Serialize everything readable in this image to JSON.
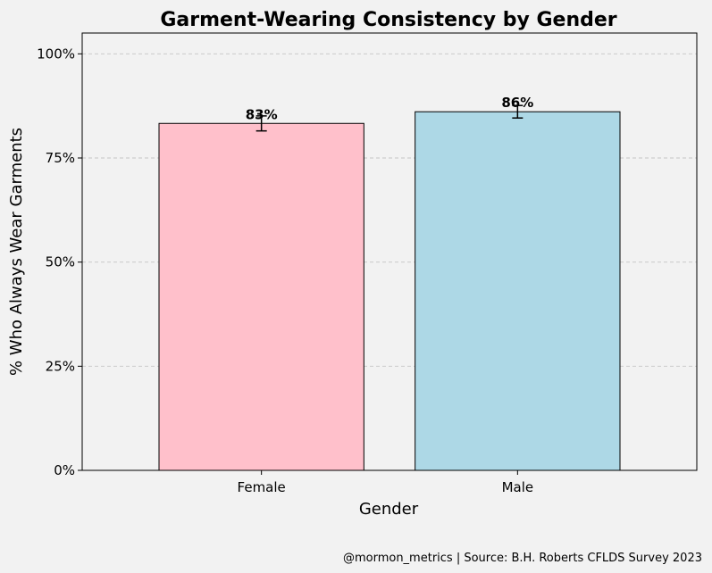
{
  "chart_data": {
    "type": "bar",
    "title": "Garment-Wearing Consistency by Gender",
    "xlabel": "Gender",
    "ylabel": "% Who Always Wear Garments",
    "categories": [
      "Female",
      "Male"
    ],
    "values": [
      83.3,
      86.1
    ],
    "error": [
      1.8,
      1.5
    ],
    "value_labels": [
      "83%",
      "86%"
    ],
    "colors": [
      "#ffc0cb",
      "#add8e6"
    ],
    "ylim": [
      0,
      105
    ],
    "yticks": [
      0,
      25,
      50,
      75,
      100
    ],
    "ytick_labels": [
      "0%",
      "25%",
      "50%",
      "75%",
      "100%"
    ],
    "grid": "y-dashed",
    "source": "@mormon_metrics | Source: B.H. Roberts CFLDS Survey 2023"
  }
}
